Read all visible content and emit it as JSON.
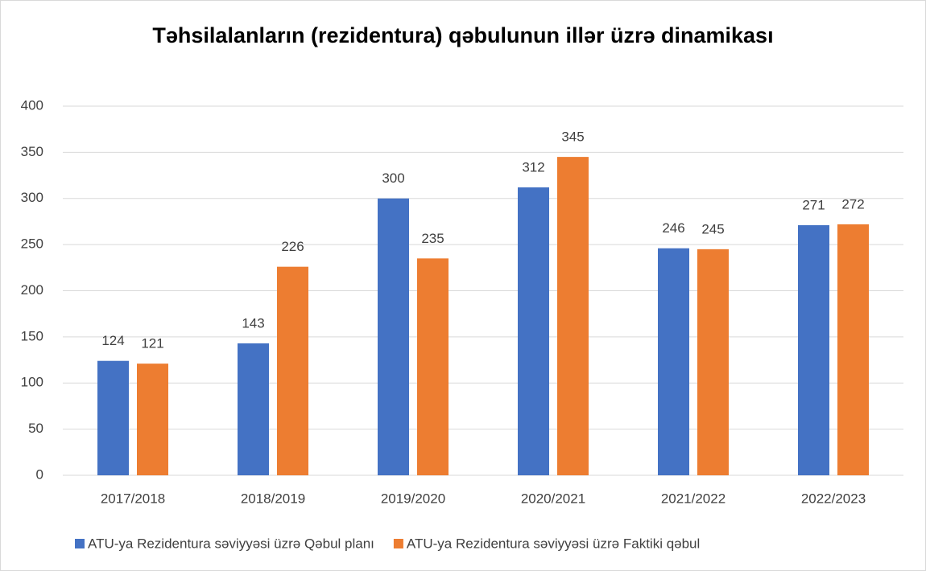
{
  "chart_data": {
    "type": "bar",
    "title": "Təhsilalanların (rezidentura) qəbulunun illər üzrə dinamikası",
    "categories": [
      "2017/2018",
      "2018/2019",
      "2019/2020",
      "2020/2021",
      "2021/2022",
      "2022/2023"
    ],
    "series": [
      {
        "name": "ATU-ya Rezidentura səviyyəsi üzrə Qəbul planı",
        "color": "#4472c4",
        "values": [
          124,
          143,
          300,
          312,
          246,
          271
        ]
      },
      {
        "name": "ATU-ya Rezidentura səviyyəsi üzrə Faktiki qəbul",
        "color": "#ed7d31",
        "values": [
          121,
          226,
          235,
          345,
          245,
          272
        ]
      }
    ],
    "ylim": [
      0,
      400
    ],
    "yticks": [
      0,
      50,
      100,
      150,
      200,
      250,
      300,
      350,
      400
    ],
    "grid": true,
    "legend": "bottom"
  }
}
